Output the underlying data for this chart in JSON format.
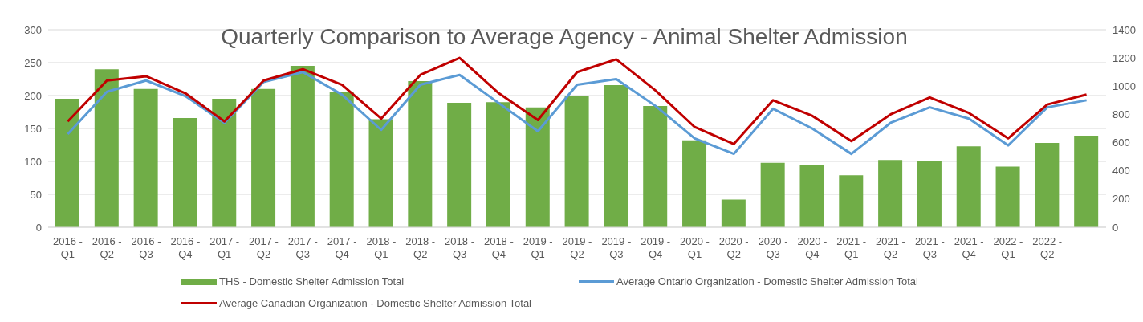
{
  "chart_data": {
    "type": "bar",
    "title": "Quarterly Comparison to Average Agency - Animal Shelter Admission",
    "categories": [
      "2016 - Q1",
      "2016 - Q2",
      "2016 - Q3",
      "2016 - Q4",
      "2017 - Q1",
      "2017 - Q2",
      "2017 - Q3",
      "2017 - Q4",
      "2018 - Q1",
      "2018 - Q2",
      "2018 - Q3",
      "2018 - Q4",
      "2019 - Q1",
      "2019 - Q2",
      "2019 - Q3",
      "2019 - Q4",
      "2020 - Q1",
      "2020 - Q2",
      "2020 - Q3",
      "2020 - Q4",
      "2021 - Q1",
      "2021 - Q2",
      "2021 - Q3",
      "2021 - Q4",
      "2022 - Q1",
      "2022 - Q2",
      null
    ],
    "series": [
      {
        "name": "THS - Domestic Shelter Admission Total",
        "color": "#70ad47",
        "values": [
          195,
          240,
          210,
          166,
          195,
          210,
          245,
          205,
          164,
          222,
          189,
          190,
          182,
          200,
          216,
          184,
          132,
          42,
          98,
          95,
          79,
          102,
          101,
          123,
          92,
          128,
          139
        ]
      },
      {
        "name": "Average Ontario Organization - Domestic Shelter Admission Total",
        "type": "line",
        "axis": "y2",
        "color": "#5b9bd5",
        "values": [
          660,
          960,
          1040,
          930,
          740,
          1030,
          1100,
          940,
          690,
          1010,
          1080,
          880,
          680,
          1010,
          1050,
          860,
          630,
          520,
          840,
          700,
          520,
          740,
          850,
          770,
          580,
          850,
          900
        ]
      },
      {
        "name": "Average Canadian Organization - Domestic Shelter Admission Total",
        "type": "line",
        "axis": "y2",
        "color": "#c00000",
        "values": [
          750,
          1040,
          1070,
          950,
          750,
          1040,
          1120,
          1010,
          770,
          1080,
          1200,
          950,
          760,
          1100,
          1190,
          970,
          710,
          590,
          900,
          790,
          610,
          800,
          920,
          810,
          630,
          870,
          940
        ]
      }
    ],
    "ylim": [
      0,
      300
    ],
    "yticks": [
      0,
      50,
      100,
      150,
      200,
      250,
      300
    ],
    "y2lim": [
      0,
      1400
    ],
    "y2ticks": [
      0,
      200,
      400,
      600,
      800,
      1000,
      1200,
      1400
    ],
    "grid": "y",
    "legend": "bottom",
    "marker": "none",
    "line_style": "solid"
  }
}
